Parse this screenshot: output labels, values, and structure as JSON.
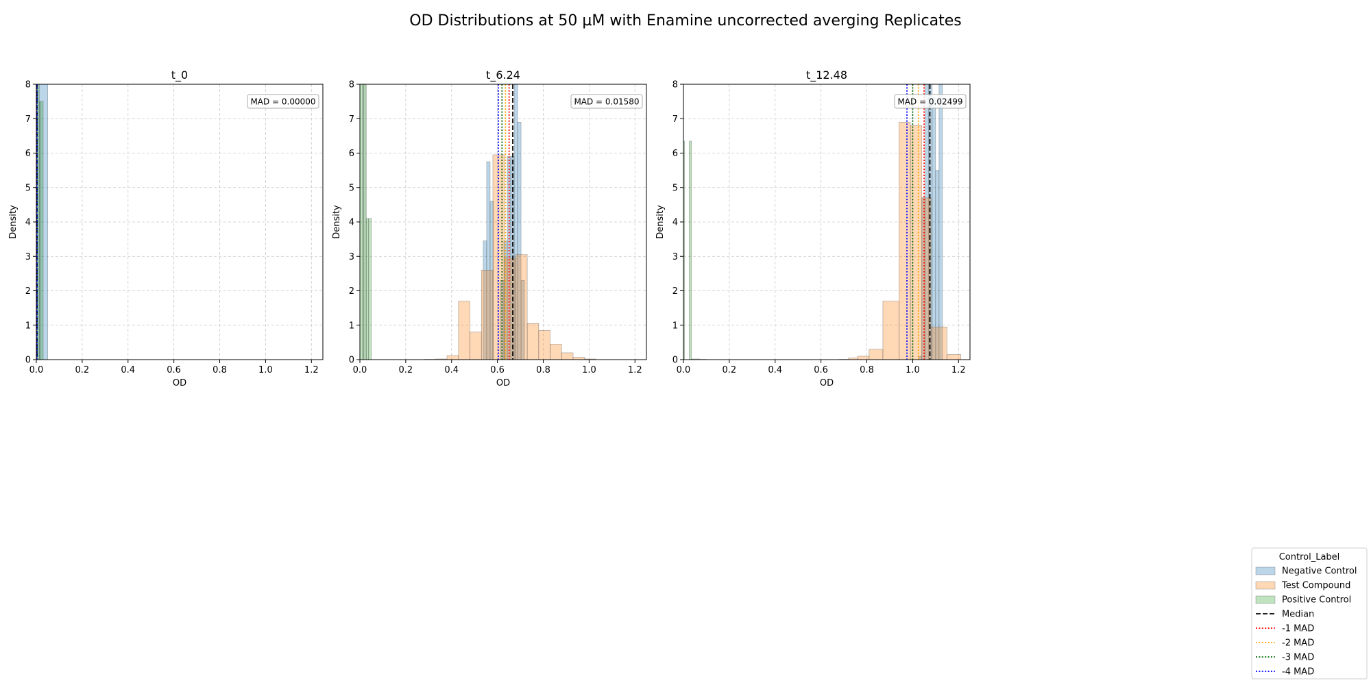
{
  "figure": {
    "suptitle": "OD Distributions at 50 µM with Enamine uncorrected averging Replicates"
  },
  "legend": {
    "title": "Control_Label",
    "entries": [
      {
        "label": "Negative Control",
        "kind": "patch",
        "color": "#1f77b4"
      },
      {
        "label": "Test Compound",
        "kind": "patch",
        "color": "#ff7f0e"
      },
      {
        "label": "Positive Control",
        "kind": "patch",
        "color": "#2ca02c"
      },
      {
        "label": "Median",
        "kind": "dashed",
        "color": "#000000"
      },
      {
        "label": "-1 MAD",
        "kind": "dotted",
        "color": "#ff0000"
      },
      {
        "label": "-2 MAD",
        "kind": "dotted",
        "color": "#ffa500"
      },
      {
        "label": "-3 MAD",
        "kind": "dotted",
        "color": "#006400"
      },
      {
        "label": "-4 MAD",
        "kind": "dotted",
        "color": "#0000ff"
      }
    ]
  },
  "chart_data": [
    {
      "type": "histogram",
      "title": "t_0",
      "xlabel": "OD",
      "ylabel": "Density",
      "xlim": [
        0,
        1.25
      ],
      "ylim": [
        0,
        8
      ],
      "xticks": [
        0.0,
        0.2,
        0.4,
        0.6,
        0.8,
        1.0,
        1.2
      ],
      "yticks": [
        0,
        1,
        2,
        3,
        4,
        5,
        6,
        7,
        8
      ],
      "grid": true,
      "annotation": "MAD = 0.00000",
      "series": [
        {
          "name": "Negative Control",
          "color": "#1f77b4",
          "bins": [
            [
              0.0,
              0.05,
              8.0
            ]
          ]
        },
        {
          "name": "Test Compound",
          "color": "#ff7f0e",
          "bins": []
        },
        {
          "name": "Positive Control",
          "color": "#2ca02c",
          "bins": [
            [
              0.0,
              0.003,
              8.0
            ],
            [
              0.003,
              0.013,
              8.0
            ],
            [
              0.013,
              0.017,
              7.5
            ],
            [
              0.017,
              0.03,
              7.5
            ]
          ]
        }
      ],
      "lines": [
        {
          "kind": "median",
          "x": 0.003
        },
        {
          "kind": "mad1",
          "x": 0.003
        },
        {
          "kind": "mad2",
          "x": 0.003
        },
        {
          "kind": "mad3",
          "x": 0.003
        },
        {
          "kind": "mad4",
          "x": 0.003
        }
      ]
    },
    {
      "type": "histogram",
      "title": "t_6.24",
      "xlabel": "OD",
      "ylabel": "Density",
      "xlim": [
        0,
        1.25
      ],
      "ylim": [
        0,
        8
      ],
      "xticks": [
        0.0,
        0.2,
        0.4,
        0.6,
        0.8,
        1.0,
        1.2
      ],
      "yticks": [
        0,
        1,
        2,
        3,
        4,
        5,
        6,
        7,
        8
      ],
      "grid": true,
      "annotation": "MAD = 0.01580",
      "series": [
        {
          "name": "Negative Control",
          "color": "#1f77b4",
          "bins": [
            [
              0.538,
              0.553,
              3.45
            ],
            [
              0.553,
              0.568,
              5.75
            ],
            [
              0.568,
              0.583,
              4.6
            ],
            [
              0.583,
              0.598,
              0.0
            ],
            [
              0.598,
              0.613,
              0.0
            ],
            [
              0.613,
              0.628,
              2.3
            ],
            [
              0.628,
              0.643,
              3.45
            ],
            [
              0.643,
              0.658,
              5.9
            ],
            [
              0.658,
              0.673,
              5.9
            ],
            [
              0.673,
              0.688,
              8.0
            ],
            [
              0.688,
              0.703,
              6.9
            ],
            [
              0.703,
              0.718,
              2.3
            ]
          ]
        },
        {
          "name": "Test Compound",
          "color": "#ff7f0e",
          "bins": [
            [
              0.28,
              0.33,
              0.01
            ],
            [
              0.33,
              0.38,
              0.02
            ],
            [
              0.38,
              0.43,
              0.12
            ],
            [
              0.43,
              0.48,
              1.7
            ],
            [
              0.48,
              0.53,
              0.8
            ],
            [
              0.53,
              0.58,
              2.6
            ],
            [
              0.58,
              0.63,
              5.95
            ],
            [
              0.63,
              0.68,
              2.95
            ],
            [
              0.68,
              0.73,
              3.05
            ],
            [
              0.73,
              0.78,
              1.05
            ],
            [
              0.78,
              0.83,
              0.85
            ],
            [
              0.83,
              0.88,
              0.45
            ],
            [
              0.88,
              0.93,
              0.2
            ],
            [
              0.93,
              0.98,
              0.07
            ],
            [
              0.98,
              1.03,
              0.02
            ]
          ]
        },
        {
          "name": "Positive Control",
          "color": "#2ca02c",
          "bins": [
            [
              0.0,
              0.012,
              8.0
            ],
            [
              0.012,
              0.017,
              8.0
            ],
            [
              0.017,
              0.022,
              8.0
            ],
            [
              0.022,
              0.028,
              8.0
            ],
            [
              0.028,
              0.038,
              4.1
            ],
            [
              0.038,
              0.05,
              4.1
            ]
          ]
        }
      ],
      "lines": [
        {
          "kind": "median",
          "x": 0.667
        },
        {
          "kind": "mad1",
          "x": 0.651
        },
        {
          "kind": "mad2",
          "x": 0.635
        },
        {
          "kind": "mad3",
          "x": 0.62
        },
        {
          "kind": "mad4",
          "x": 0.604
        }
      ]
    },
    {
      "type": "histogram",
      "title": "t_12.48",
      "xlabel": "OD",
      "ylabel": "Density",
      "xlim": [
        0,
        1.25
      ],
      "ylim": [
        0,
        8
      ],
      "xticks": [
        0.0,
        0.2,
        0.4,
        0.6,
        0.8,
        1.0,
        1.2
      ],
      "yticks": [
        0,
        1,
        2,
        3,
        4,
        5,
        6,
        7,
        8
      ],
      "grid": true,
      "annotation": "MAD = 0.02499",
      "series": [
        {
          "name": "Negative Control",
          "color": "#1f77b4",
          "bins": [
            [
              1.025,
              1.04,
              0.1
            ],
            [
              1.04,
              1.055,
              4.7
            ],
            [
              1.055,
              1.07,
              8.0
            ],
            [
              1.07,
              1.085,
              8.0
            ],
            [
              1.085,
              1.1,
              7.6
            ],
            [
              1.1,
              1.115,
              5.5
            ],
            [
              1.115,
              1.13,
              8.0
            ],
            [
              1.13,
              1.145,
              0.0
            ]
          ]
        },
        {
          "name": "Test Compound",
          "color": "#ff7f0e",
          "bins": [
            [
              0.68,
              0.72,
              0.01
            ],
            [
              0.72,
              0.76,
              0.05
            ],
            [
              0.76,
              0.81,
              0.1
            ],
            [
              0.81,
              0.87,
              0.3
            ],
            [
              0.87,
              0.94,
              1.7
            ],
            [
              0.94,
              0.99,
              6.9
            ],
            [
              0.99,
              1.04,
              6.8
            ],
            [
              1.04,
              1.08,
              4.7
            ],
            [
              1.08,
              1.15,
              0.95
            ],
            [
              1.15,
              1.21,
              0.15
            ]
          ]
        },
        {
          "name": "Positive Control",
          "color": "#2ca02c",
          "bins": [
            [
              0.0,
              0.005,
              6.35
            ],
            [
              0.005,
              0.025,
              0.0
            ],
            [
              0.025,
              0.035,
              6.35
            ],
            [
              0.035,
              0.07,
              0.02
            ],
            [
              0.07,
              0.1,
              0.01
            ]
          ]
        }
      ],
      "lines": [
        {
          "kind": "median",
          "x": 1.075
        },
        {
          "kind": "mad1",
          "x": 1.05
        },
        {
          "kind": "mad2",
          "x": 1.025
        },
        {
          "kind": "mad3",
          "x": 1.0
        },
        {
          "kind": "mad4",
          "x": 0.975
        }
      ]
    }
  ]
}
